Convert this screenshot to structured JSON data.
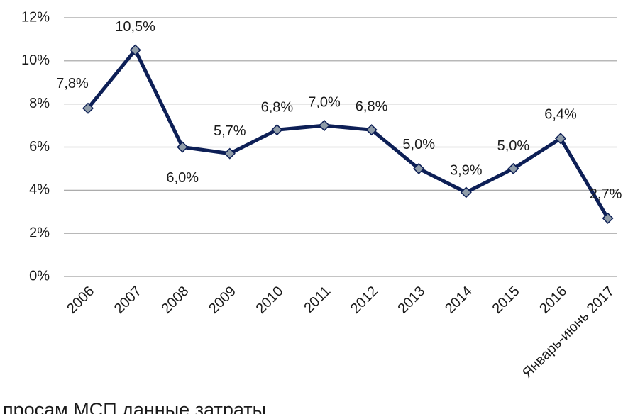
{
  "chart_data": {
    "type": "line",
    "categories": [
      "2006",
      "2007",
      "2008",
      "2009",
      "2010",
      "2011",
      "2012",
      "2013",
      "2014",
      "2015",
      "2016",
      "Январь-июнь 2017"
    ],
    "series": [
      {
        "color": "#0d1f56",
        "values": [
          7.8,
          10.5,
          6.0,
          5.7,
          6.8,
          7.0,
          6.8,
          5.0,
          3.9,
          5.0,
          6.4,
          2.7
        ],
        "value_labels": [
          "7,8%",
          "10,5%",
          "6,0%",
          "5,7%",
          "6,8%",
          "7,0%",
          "6,8%",
          "5,0%",
          "3,9%",
          "5,0%",
          "6,4%",
          "2,7%"
        ]
      }
    ],
    "ylim": [
      0,
      12
    ],
    "yticks": [
      {
        "value": 0,
        "label": "0%"
      },
      {
        "value": 2,
        "label": "2%"
      },
      {
        "value": 4,
        "label": "4%"
      },
      {
        "value": 6,
        "label": "6%"
      },
      {
        "value": 8,
        "label": "8%"
      },
      {
        "value": 10,
        "label": "10%"
      },
      {
        "value": 12,
        "label": "12%"
      }
    ],
    "grid": true,
    "marker_color": "#8f9ca8"
  },
  "caption": "просам МСП данные затраты"
}
